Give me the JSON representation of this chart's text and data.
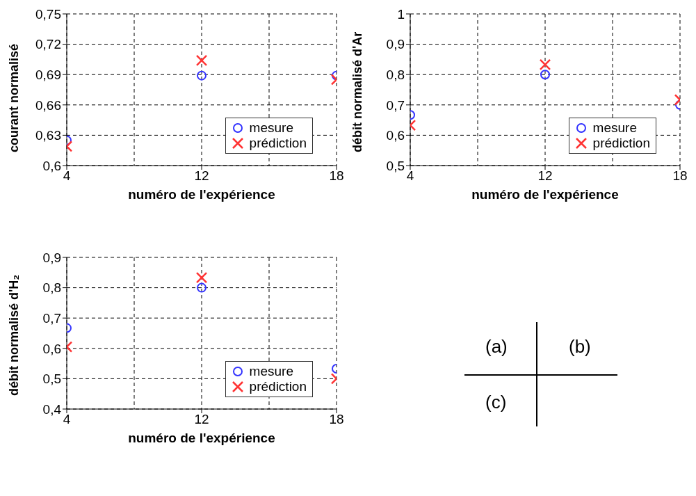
{
  "chart_data": [
    {
      "type": "scatter",
      "xlabel": "numéro de l'expérience",
      "ylabel": "courant normalisé",
      "categories": [
        "4",
        "12",
        "18"
      ],
      "ylim": [
        0.6,
        0.75
      ],
      "yticks": [
        {
          "value": 0.6,
          "label": "0,6"
        },
        {
          "value": 0.63,
          "label": "0,63"
        },
        {
          "value": 0.66,
          "label": "0,66"
        },
        {
          "value": 0.69,
          "label": "0,69"
        },
        {
          "value": 0.72,
          "label": "0,72"
        },
        {
          "value": 0.75,
          "label": "0,75"
        }
      ],
      "grid": true,
      "legend": "right",
      "series": [
        {
          "name": "mesure",
          "color": "#3333ff",
          "marker": "circle",
          "values": [
            0.625,
            0.689,
            0.689
          ]
        },
        {
          "name": "prédiction",
          "color": "#ff3333",
          "marker": "cross",
          "values": [
            0.619,
            0.704,
            0.685
          ]
        }
      ]
    },
    {
      "type": "scatter",
      "xlabel": "numéro de l'expérience",
      "ylabel": "débit normalisé d'Ar",
      "categories": [
        "4",
        "12",
        "18"
      ],
      "ylim": [
        0.5,
        1
      ],
      "yticks": [
        {
          "value": 0.5,
          "label": "0,5"
        },
        {
          "value": 0.6,
          "label": "0,6"
        },
        {
          "value": 0.7,
          "label": "0,7"
        },
        {
          "value": 0.8,
          "label": "0,8"
        },
        {
          "value": 0.9,
          "label": "0,9"
        },
        1
      ],
      "grid": true,
      "legend": "right",
      "series": [
        {
          "name": "mesure",
          "color": "#3333ff",
          "marker": "circle",
          "values": [
            0.667,
            0.8,
            0.7
          ]
        },
        {
          "name": "prédiction",
          "color": "#ff3333",
          "marker": "cross",
          "values": [
            0.633,
            0.833,
            0.717
          ]
        }
      ]
    },
    {
      "type": "scatter",
      "xlabel": "numéro de l'expérience",
      "ylabel": "débit normalisé d'H₂",
      "categories": [
        "4",
        "12",
        "18"
      ],
      "ylim": [
        0.4,
        0.9
      ],
      "yticks": [
        {
          "value": 0.4,
          "label": "0,4"
        },
        {
          "value": 0.5,
          "label": "0,5"
        },
        {
          "value": 0.6,
          "label": "0,6"
        },
        {
          "value": 0.7,
          "label": "0,7"
        },
        {
          "value": 0.8,
          "label": "0,8"
        },
        {
          "value": 0.9,
          "label": "0,9"
        }
      ],
      "grid": true,
      "legend": "right",
      "series": [
        {
          "name": "mesure",
          "color": "#3333ff",
          "marker": "circle",
          "values": [
            0.667,
            0.8,
            0.533
          ]
        },
        {
          "name": "prédiction",
          "color": "#ff3333",
          "marker": "cross",
          "values": [
            0.605,
            0.833,
            0.5
          ]
        }
      ]
    },
    {
      "type": "other",
      "annotations": [
        "(a)",
        "(b)",
        "(c)"
      ]
    }
  ]
}
